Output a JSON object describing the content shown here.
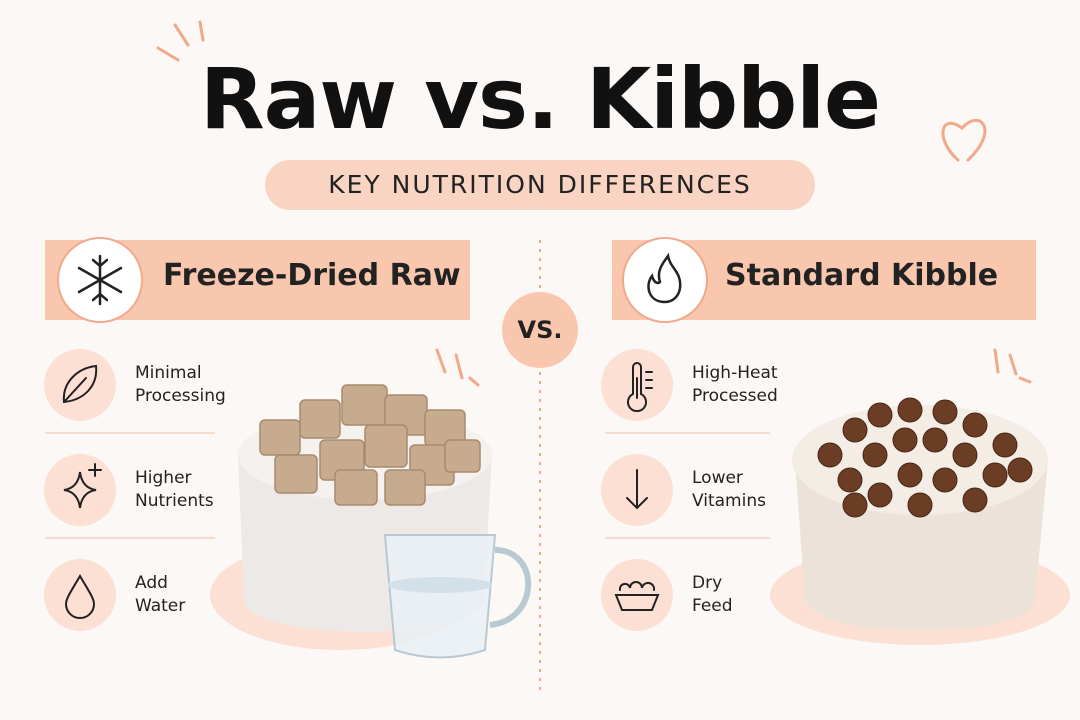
{
  "header": {
    "title": "Raw vs. Kibble",
    "subtitle": "KEY NUTRITION DIFFERENCES"
  },
  "versus": "VS.",
  "left": {
    "title": "Freeze-Dried Raw",
    "items": [
      {
        "label": [
          "Minimal",
          "Processing"
        ]
      },
      {
        "label": [
          "Higher",
          "Nutrients"
        ]
      },
      {
        "label": [
          "Add",
          "Water"
        ]
      }
    ]
  },
  "right": {
    "title": "Standard Kibble",
    "items": [
      {
        "label": [
          "High-Heat",
          "Processed"
        ]
      },
      {
        "label": [
          "Lower",
          "Vitamins"
        ]
      },
      {
        "label": [
          "Dry",
          "Feed"
        ]
      }
    ]
  }
}
